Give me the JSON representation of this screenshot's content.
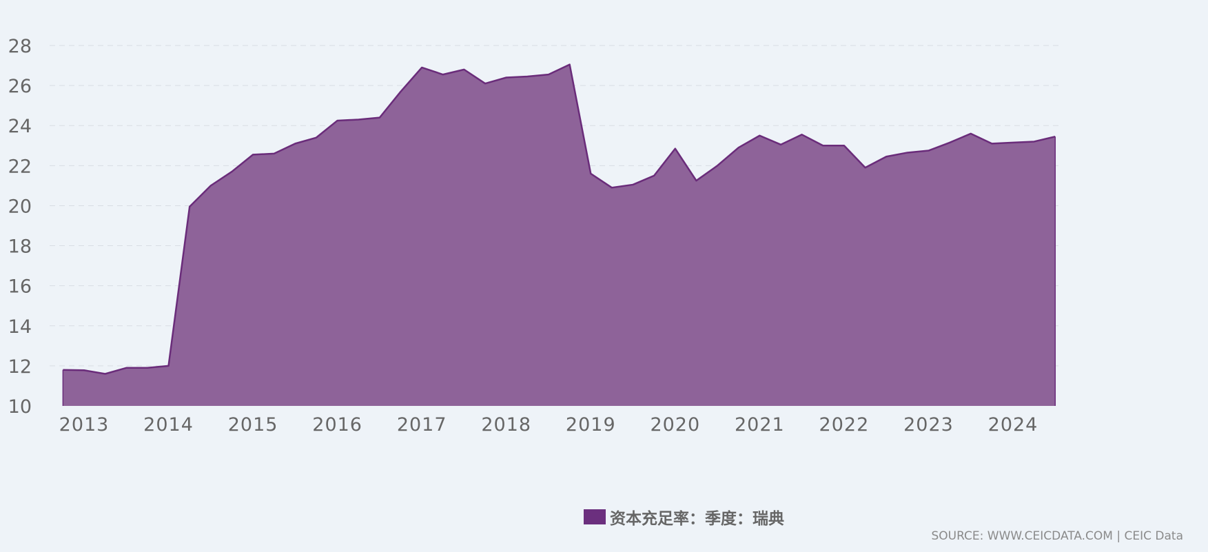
{
  "chart_data": {
    "type": "area",
    "title": "",
    "xlabel": "",
    "ylabel": "",
    "ylim": [
      10,
      28
    ],
    "y_ticks": [
      10,
      12,
      14,
      16,
      18,
      20,
      22,
      24,
      26,
      28
    ],
    "x_tick_labels": [
      "2013",
      "2014",
      "2015",
      "2016",
      "2017",
      "2018",
      "2019",
      "2020",
      "2021",
      "2022",
      "2023",
      "2024"
    ],
    "x_range": [
      2012.66,
      2024.5
    ],
    "grid": "horizontal dashed",
    "legend_position": "bottom-center",
    "series": [
      {
        "name": "资本充足率：季度：瑞典",
        "fill_color": "#8e6399",
        "line_color": "#6a2c7a",
        "legend_color": "#6b2f7e",
        "points": [
          [
            2012.75,
            11.8
          ],
          [
            2013.0,
            11.78
          ],
          [
            2013.25,
            11.6
          ],
          [
            2013.5,
            11.9
          ],
          [
            2013.75,
            11.9
          ],
          [
            2014.0,
            12.0
          ],
          [
            2014.25,
            19.95
          ],
          [
            2014.5,
            21.0
          ],
          [
            2014.75,
            21.7
          ],
          [
            2015.0,
            22.55
          ],
          [
            2015.25,
            22.6
          ],
          [
            2015.5,
            23.1
          ],
          [
            2015.75,
            23.4
          ],
          [
            2016.0,
            24.25
          ],
          [
            2016.25,
            24.3
          ],
          [
            2016.5,
            24.4
          ],
          [
            2016.75,
            25.7
          ],
          [
            2017.0,
            26.9
          ],
          [
            2017.25,
            26.55
          ],
          [
            2017.5,
            26.8
          ],
          [
            2017.75,
            26.1
          ],
          [
            2018.0,
            26.4
          ],
          [
            2018.25,
            26.45
          ],
          [
            2018.5,
            26.55
          ],
          [
            2018.75,
            27.05
          ],
          [
            2019.0,
            21.6
          ],
          [
            2019.25,
            20.9
          ],
          [
            2019.5,
            21.05
          ],
          [
            2019.75,
            21.5
          ],
          [
            2020.0,
            22.85
          ],
          [
            2020.25,
            21.25
          ],
          [
            2020.5,
            22.0
          ],
          [
            2020.75,
            22.9
          ],
          [
            2021.0,
            23.5
          ],
          [
            2021.25,
            23.05
          ],
          [
            2021.5,
            23.55
          ],
          [
            2021.75,
            23.0
          ],
          [
            2022.0,
            23.0
          ],
          [
            2022.25,
            21.9
          ],
          [
            2022.5,
            22.45
          ],
          [
            2022.75,
            22.65
          ],
          [
            2023.0,
            22.75
          ],
          [
            2023.25,
            23.15
          ],
          [
            2023.5,
            23.6
          ],
          [
            2023.75,
            23.1
          ],
          [
            2024.0,
            23.15
          ],
          [
            2024.25,
            23.2
          ],
          [
            2024.5,
            23.45
          ]
        ]
      }
    ]
  },
  "legend": {
    "label": "资本充足率：季度：瑞典"
  },
  "footer": {
    "source": "SOURCE: WWW.CEICDATA.COM | CEIC Data"
  }
}
